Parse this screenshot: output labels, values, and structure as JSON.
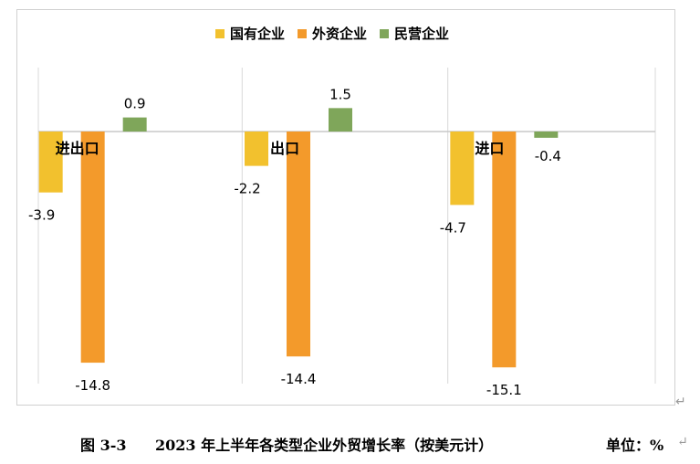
{
  "chart_data": {
    "type": "bar",
    "categories": [
      "进出口",
      "出口",
      "进口"
    ],
    "series": [
      {
        "name": "国有企业",
        "color": "#f2c12e",
        "values": [
          -3.9,
          -2.2,
          -4.7
        ]
      },
      {
        "name": "外资企业",
        "color": "#f39a2b",
        "values": [
          -14.8,
          -14.4,
          -15.1
        ]
      },
      {
        "name": "民营企业",
        "color": "#7fa65a",
        "values": [
          0.9,
          1.5,
          -0.4
        ]
      }
    ],
    "value_labels": [
      [
        "-3.9",
        "-2.2",
        "-4.7"
      ],
      [
        "-14.8",
        "-14.4",
        "-15.1"
      ],
      [
        "0.9",
        "1.5",
        "-0.4"
      ]
    ],
    "ylim": [
      -16,
      4
    ],
    "grid": false,
    "legend_position": "top",
    "legend": [
      "国有企业",
      "外资企业",
      "民营企业"
    ]
  },
  "caption": {
    "figure_no": "图 3-3",
    "title": "2023 年上半年各类型企业外贸增长率（按美元计）",
    "unit": "单位：%"
  },
  "return_mark": "↵"
}
